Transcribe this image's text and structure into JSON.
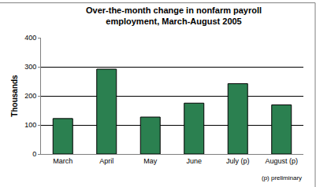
{
  "chart_data": {
    "type": "bar",
    "title": "Over-the-month change in nonfarm payroll employment, March-August 2005",
    "y_label": "Thousands",
    "categories": [
      "March",
      "April",
      "May",
      "June",
      "July (p)",
      "August (p)"
    ],
    "values": [
      122,
      292,
      127,
      175,
      242,
      169
    ],
    "color": "#2b8050",
    "ylim": [
      0,
      400
    ],
    "yticks": [
      0,
      100,
      200,
      300,
      400
    ],
    "grid": true,
    "annotations": [
      "(p) preliminary"
    ]
  }
}
